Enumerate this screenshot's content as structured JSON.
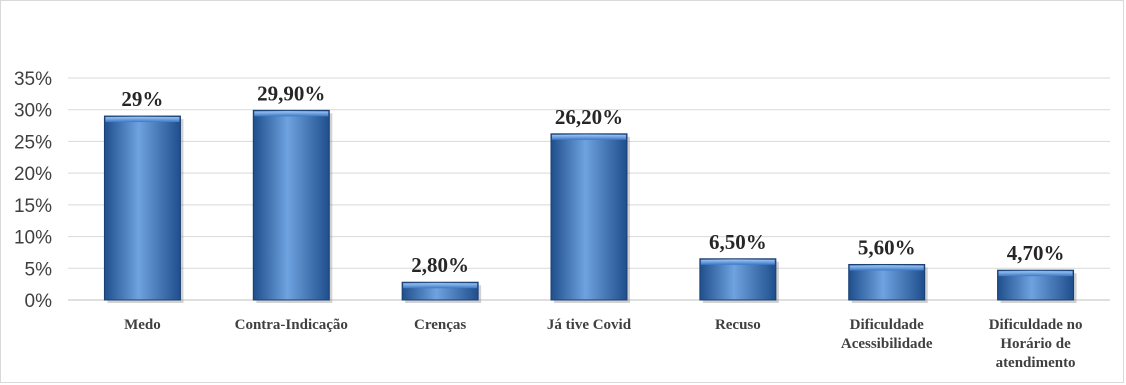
{
  "chart_data": {
    "type": "bar",
    "title": "",
    "xlabel": "",
    "ylabel": "",
    "categories": [
      "Medo",
      "Contra-Indicação",
      "Crenças",
      "Já tive Covid",
      "Recuso",
      "Dificuldade Acessibilidade",
      "Dificuldade no Horário de atendimento"
    ],
    "category_lines": [
      [
        "Medo"
      ],
      [
        "Contra-Indicação"
      ],
      [
        "Crenças"
      ],
      [
        "Já tive Covid"
      ],
      [
        "Recuso"
      ],
      [
        "Dificuldade",
        "Acessibilidade"
      ],
      [
        "Dificuldade no",
        "Horário de",
        "atendimento"
      ]
    ],
    "values": [
      29,
      29.9,
      2.8,
      26.2,
      6.5,
      5.6,
      4.7
    ],
    "data_labels": [
      "29%",
      "29,90%",
      "2,80%",
      "26,20%",
      "6,50%",
      "5,60%",
      "4,70%"
    ],
    "ylim": [
      0,
      35
    ],
    "yticks": [
      0,
      5,
      10,
      15,
      20,
      25,
      30,
      35
    ],
    "ytick_labels": [
      "0%",
      "5%",
      "10%",
      "15%",
      "20%",
      "25%",
      "30%",
      "35%"
    ],
    "grid": true,
    "legend": "none",
    "colors": {
      "bar_dark": "#1f4e8c",
      "bar_mid": "#3a78c9",
      "bar_light": "#6fa2e0",
      "grid": "#d9d9d9",
      "axis": "#bfbfbf"
    }
  }
}
